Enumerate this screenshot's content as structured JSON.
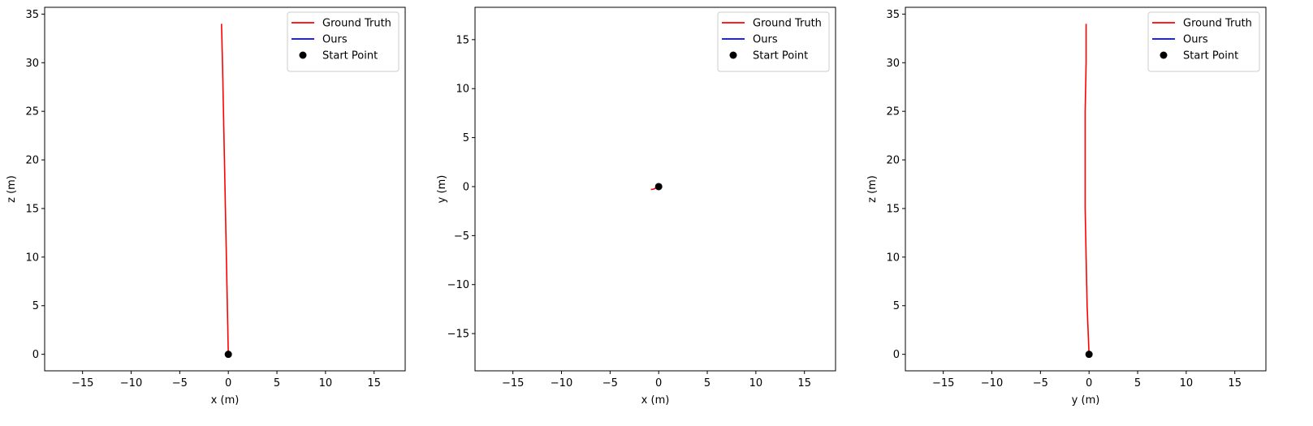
{
  "figure": {
    "background": "#ffffff",
    "panel_count": 3
  },
  "chart_data": [
    {
      "type": "line",
      "xlabel": "x (m)",
      "ylabel": "z (m)",
      "xlim": [
        -18.9,
        18.2
      ],
      "ylim": [
        -1.7,
        35.7
      ],
      "xticks": [
        -15,
        -10,
        -5,
        0,
        5,
        10,
        15
      ],
      "yticks": [
        0,
        5,
        10,
        15,
        20,
        25,
        30,
        35
      ],
      "xtick_labels": [
        "−15",
        "−10",
        "−5",
        "0",
        "5",
        "10",
        "15"
      ],
      "ytick_labels": [
        "0",
        "5",
        "10",
        "15",
        "20",
        "25",
        "30",
        "35"
      ],
      "grid": false,
      "legend_position": "top-right",
      "series": [
        {
          "name": "Ground Truth",
          "color": "#ff0000",
          "x": [
            0.0,
            -0.1,
            -0.2,
            -0.3,
            -0.4,
            -0.5,
            -0.6,
            -0.7
          ],
          "y": [
            0,
            5,
            10,
            15,
            20,
            25,
            30,
            34
          ]
        },
        {
          "name": "Ours",
          "color": "#0000ff",
          "x": [],
          "y": []
        }
      ],
      "start_point": {
        "name": "Start Point",
        "color": "#000000",
        "x": 0,
        "y": 0
      }
    },
    {
      "type": "line",
      "xlabel": "x (m)",
      "ylabel": "y (m)",
      "xlim": [
        -18.9,
        18.2
      ],
      "ylim": [
        -18.8,
        18.3
      ],
      "xticks": [
        -15,
        -10,
        -5,
        0,
        5,
        10,
        15
      ],
      "yticks": [
        -15,
        -10,
        -5,
        0,
        5,
        10,
        15
      ],
      "xtick_labels": [
        "−15",
        "−10",
        "−5",
        "0",
        "5",
        "10",
        "15"
      ],
      "ytick_labels": [
        "−15",
        "−10",
        "−5",
        "0",
        "5",
        "10",
        "15"
      ],
      "grid": false,
      "legend_position": "top-right",
      "series": [
        {
          "name": "Ground Truth",
          "color": "#ff0000",
          "x": [
            0.0,
            -0.3,
            -0.5,
            -0.8
          ],
          "y": [
            0.0,
            -0.15,
            -0.25,
            -0.3
          ]
        },
        {
          "name": "Ours",
          "color": "#0000ff",
          "x": [],
          "y": []
        }
      ],
      "start_point": {
        "name": "Start Point",
        "color": "#000000",
        "x": 0,
        "y": 0
      }
    },
    {
      "type": "line",
      "xlabel": "y (m)",
      "ylabel": "z (m)",
      "xlim": [
        -18.9,
        18.2
      ],
      "ylim": [
        -1.7,
        35.7
      ],
      "xticks": [
        -15,
        -10,
        -5,
        0,
        5,
        10,
        15
      ],
      "yticks": [
        0,
        5,
        10,
        15,
        20,
        25,
        30,
        35
      ],
      "xtick_labels": [
        "−15",
        "−10",
        "−5",
        "0",
        "5",
        "10",
        "15"
      ],
      "ytick_labels": [
        "0",
        "5",
        "10",
        "15",
        "20",
        "25",
        "30",
        "35"
      ],
      "grid": false,
      "legend_position": "top-right",
      "series": [
        {
          "name": "Ground Truth",
          "color": "#ff0000",
          "x": [
            0.0,
            -0.2,
            -0.3,
            -0.4,
            -0.4,
            -0.4,
            -0.3,
            -0.3
          ],
          "y": [
            0,
            5,
            10,
            15,
            20,
            25,
            30,
            34
          ]
        },
        {
          "name": "Ours",
          "color": "#0000ff",
          "x": [],
          "y": []
        }
      ],
      "start_point": {
        "name": "Start Point",
        "color": "#000000",
        "x": 0,
        "y": 0
      }
    }
  ]
}
